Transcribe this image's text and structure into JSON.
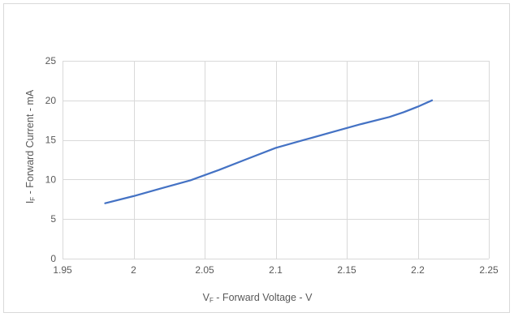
{
  "chart_data": {
    "type": "line",
    "title": "",
    "xlabel": "VF - Forward Voltage - V",
    "xlabel_parts": {
      "prefix": "V",
      "subscript": "F",
      "rest": " - Forward Voltage - V"
    },
    "ylabel": "IF - Forward Current - mA",
    "ylabel_parts": {
      "prefix": "I",
      "subscript": "F",
      "rest": " - Forward Current - mA"
    },
    "xlim": [
      1.95,
      2.25
    ],
    "ylim": [
      0,
      25
    ],
    "xticks": [
      1.95,
      2,
      2.05,
      2.1,
      2.15,
      2.2,
      2.25
    ],
    "xtick_labels": [
      "1.95",
      "2",
      "2.05",
      "2.1",
      "2.15",
      "2.2",
      "2.25"
    ],
    "yticks": [
      0,
      5,
      10,
      15,
      20,
      25
    ],
    "ytick_labels": [
      "0",
      "5",
      "10",
      "15",
      "20",
      "25"
    ],
    "grid": true,
    "legend": "none",
    "series": [
      {
        "color": "#4472c4",
        "x": [
          1.98,
          2.0,
          2.02,
          2.04,
          2.06,
          2.08,
          2.1,
          2.12,
          2.14,
          2.16,
          2.18,
          2.19,
          2.2,
          2.21
        ],
        "y": [
          7.0,
          7.9,
          8.9,
          9.9,
          11.2,
          12.6,
          14.0,
          15.0,
          16.0,
          17.0,
          17.9,
          18.5,
          19.2,
          20.0
        ]
      }
    ]
  }
}
